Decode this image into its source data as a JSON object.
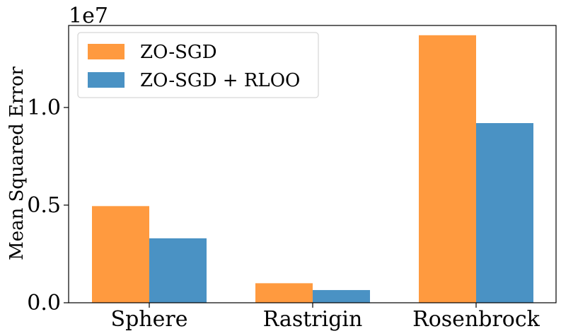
{
  "chart_data": {
    "type": "bar",
    "title": "",
    "xlabel": "",
    "ylabel": "Mean Squared Error",
    "y_offset_label": "1e7",
    "ylim": [
      0,
      14200000
    ],
    "yticks": [
      0,
      5000000,
      10000000
    ],
    "ytick_labels": [
      "0.0",
      "0.5",
      "1.0"
    ],
    "categories": [
      "Sphere",
      "Rastrigin",
      "Rosenbrock"
    ],
    "series": [
      {
        "name": "ZO-SGD",
        "color": "#ff9a3f",
        "values": [
          4950000,
          1000000,
          13700000
        ]
      },
      {
        "name": "ZO-SGD + RLOO",
        "color": "#4a92c4",
        "values": [
          3300000,
          650000,
          9200000
        ]
      }
    ],
    "legend_position": "top-left",
    "grid": false
  }
}
